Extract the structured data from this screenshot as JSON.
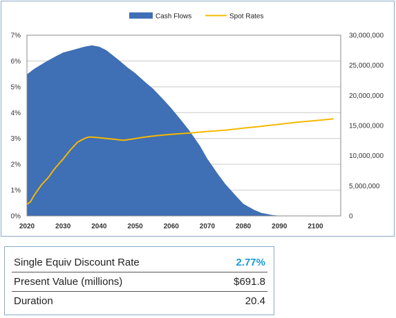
{
  "chart_data": {
    "type": "area+line",
    "legend": {
      "position": "top",
      "entries": [
        "Cash Flows",
        "Spot Rates"
      ]
    },
    "x_ticks": [
      "2020",
      "2030",
      "2040",
      "2050",
      "2060",
      "2070",
      "2080",
      "2090",
      "2100"
    ],
    "x_range": [
      2020,
      2107
    ],
    "left_axis": {
      "ticks": [
        "0%",
        "1%",
        "2%",
        "3%",
        "4%",
        "5%",
        "6%",
        "7%"
      ],
      "range": [
        0,
        7
      ],
      "unit": "%"
    },
    "right_axis": {
      "ticks": [
        "0",
        "5,000,000",
        "10,000,000",
        "15,000,000",
        "20,000,000",
        "25,000,000",
        "30,000,000"
      ],
      "range": [
        0,
        30000000
      ]
    },
    "grid": true,
    "series": [
      {
        "name": "Cash Flows",
        "type": "area",
        "axis": "right",
        "color": "#3f6fb5",
        "points": [
          [
            2020,
            23500000
          ],
          [
            2022,
            24400000
          ],
          [
            2025,
            25500000
          ],
          [
            2028,
            26500000
          ],
          [
            2030,
            27100000
          ],
          [
            2033,
            27600000
          ],
          [
            2036,
            28100000
          ],
          [
            2038,
            28300000
          ],
          [
            2040,
            28100000
          ],
          [
            2042,
            27500000
          ],
          [
            2045,
            26100000
          ],
          [
            2048,
            24600000
          ],
          [
            2050,
            23700000
          ],
          [
            2053,
            22100000
          ],
          [
            2055,
            21100000
          ],
          [
            2058,
            19200000
          ],
          [
            2060,
            17900000
          ],
          [
            2063,
            15700000
          ],
          [
            2065,
            14200000
          ],
          [
            2068,
            11600000
          ],
          [
            2070,
            9500000
          ],
          [
            2073,
            6900000
          ],
          [
            2075,
            5300000
          ],
          [
            2078,
            3300000
          ],
          [
            2080,
            2000000
          ],
          [
            2083,
            1000000
          ],
          [
            2085,
            500000
          ],
          [
            2088,
            150000
          ],
          [
            2090,
            20000
          ],
          [
            2092,
            0
          ]
        ]
      },
      {
        "name": "Spot Rates",
        "type": "line",
        "axis": "left",
        "color": "#f5b800",
        "points": [
          [
            2020,
            0.45
          ],
          [
            2021,
            0.55
          ],
          [
            2022,
            0.8
          ],
          [
            2023,
            1.0
          ],
          [
            2024,
            1.2
          ],
          [
            2025,
            1.35
          ],
          [
            2026,
            1.5
          ],
          [
            2027,
            1.7
          ],
          [
            2028,
            1.88
          ],
          [
            2030,
            2.2
          ],
          [
            2032,
            2.55
          ],
          [
            2034,
            2.85
          ],
          [
            2035,
            2.93
          ],
          [
            2036,
            3.0
          ],
          [
            2037,
            3.05
          ],
          [
            2038,
            3.05
          ],
          [
            2040,
            3.03
          ],
          [
            2042,
            3.0
          ],
          [
            2044,
            2.97
          ],
          [
            2046,
            2.94
          ],
          [
            2047,
            2.93
          ],
          [
            2049,
            2.97
          ],
          [
            2051,
            3.02
          ],
          [
            2053,
            3.06
          ],
          [
            2056,
            3.11
          ],
          [
            2060,
            3.16
          ],
          [
            2065,
            3.21
          ],
          [
            2070,
            3.27
          ],
          [
            2075,
            3.32
          ],
          [
            2080,
            3.4
          ],
          [
            2085,
            3.47
          ],
          [
            2090,
            3.55
          ],
          [
            2095,
            3.63
          ],
          [
            2100,
            3.69
          ],
          [
            2105,
            3.76
          ]
        ]
      }
    ]
  },
  "summary": {
    "rows": [
      {
        "label": "Single Equiv Discount Rate",
        "value": "2.77%"
      },
      {
        "label": "Present Value (millions)",
        "value": "$691.8"
      },
      {
        "label": "Duration",
        "value": "20.4"
      }
    ]
  }
}
